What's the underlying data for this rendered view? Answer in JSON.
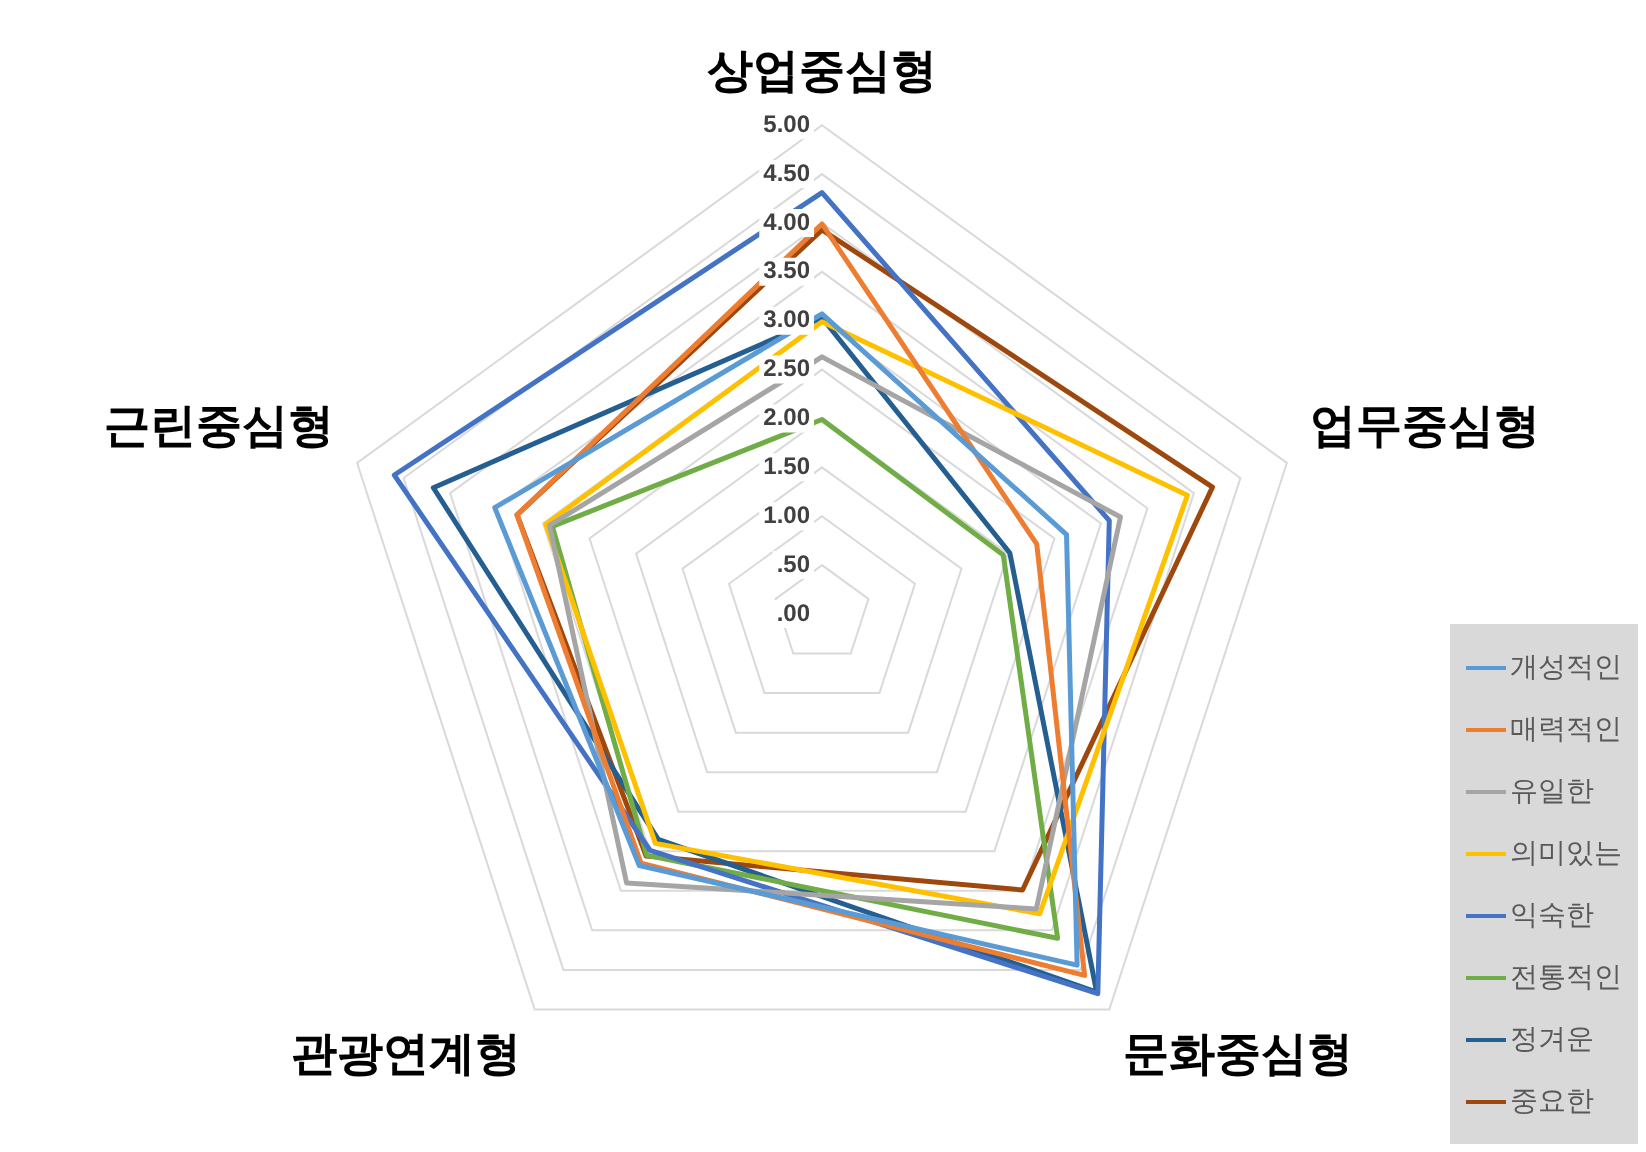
{
  "chart_data": {
    "type": "radar",
    "categories": [
      "상업중심형",
      "업무중심형",
      "문화중심형",
      "관광연계형",
      "근린중심형"
    ],
    "series": [
      {
        "name": "개성적인",
        "color": "#5b9bd5",
        "values": [
          3.07,
          2.63,
          4.44,
          3.18,
          3.52
        ]
      },
      {
        "name": "매력적인",
        "color": "#ed7d31",
        "values": [
          3.99,
          2.31,
          4.57,
          3.15,
          3.28
        ]
      },
      {
        "name": "유일한",
        "color": "#a5a5a5",
        "values": [
          2.63,
          3.21,
          3.73,
          3.4,
          2.93
        ]
      },
      {
        "name": "의미있는",
        "color": "#ffc000",
        "values": [
          2.99,
          3.93,
          3.79,
          2.9,
          2.97
        ]
      },
      {
        "name": "익숙한",
        "color": "#4472c4",
        "values": [
          4.31,
          3.09,
          4.8,
          2.99,
          4.6
        ]
      },
      {
        "name": "전통적인",
        "color": "#70ad47",
        "values": [
          1.99,
          1.95,
          4.1,
          3.05,
          2.9
        ]
      },
      {
        "name": "정겨운",
        "color": "#255e91",
        "values": [
          3.03,
          2.02,
          4.78,
          2.85,
          4.18
        ]
      },
      {
        "name": "중요한",
        "color": "#9e480e",
        "values": [
          3.93,
          4.2,
          3.49,
          3.06,
          3.28
        ]
      }
    ],
    "ylim": [
      0,
      5
    ],
    "yticks": [
      {
        "value": 0,
        "label": ".00"
      },
      {
        "value": 0.5,
        "label": ".50"
      },
      {
        "value": 1,
        "label": "1.00"
      },
      {
        "value": 1.5,
        "label": "1.50"
      },
      {
        "value": 2,
        "label": "2.00"
      },
      {
        "value": 2.5,
        "label": "2.50"
      },
      {
        "value": 3,
        "label": "3.00"
      },
      {
        "value": 3.5,
        "label": "3.50"
      },
      {
        "value": 4,
        "label": "4.00"
      },
      {
        "value": 4.5,
        "label": "4.50"
      },
      {
        "value": 5,
        "label": "5.00"
      }
    ],
    "grid": true,
    "legend": "bottom right",
    "marker": "none",
    "line_style": "solid"
  }
}
